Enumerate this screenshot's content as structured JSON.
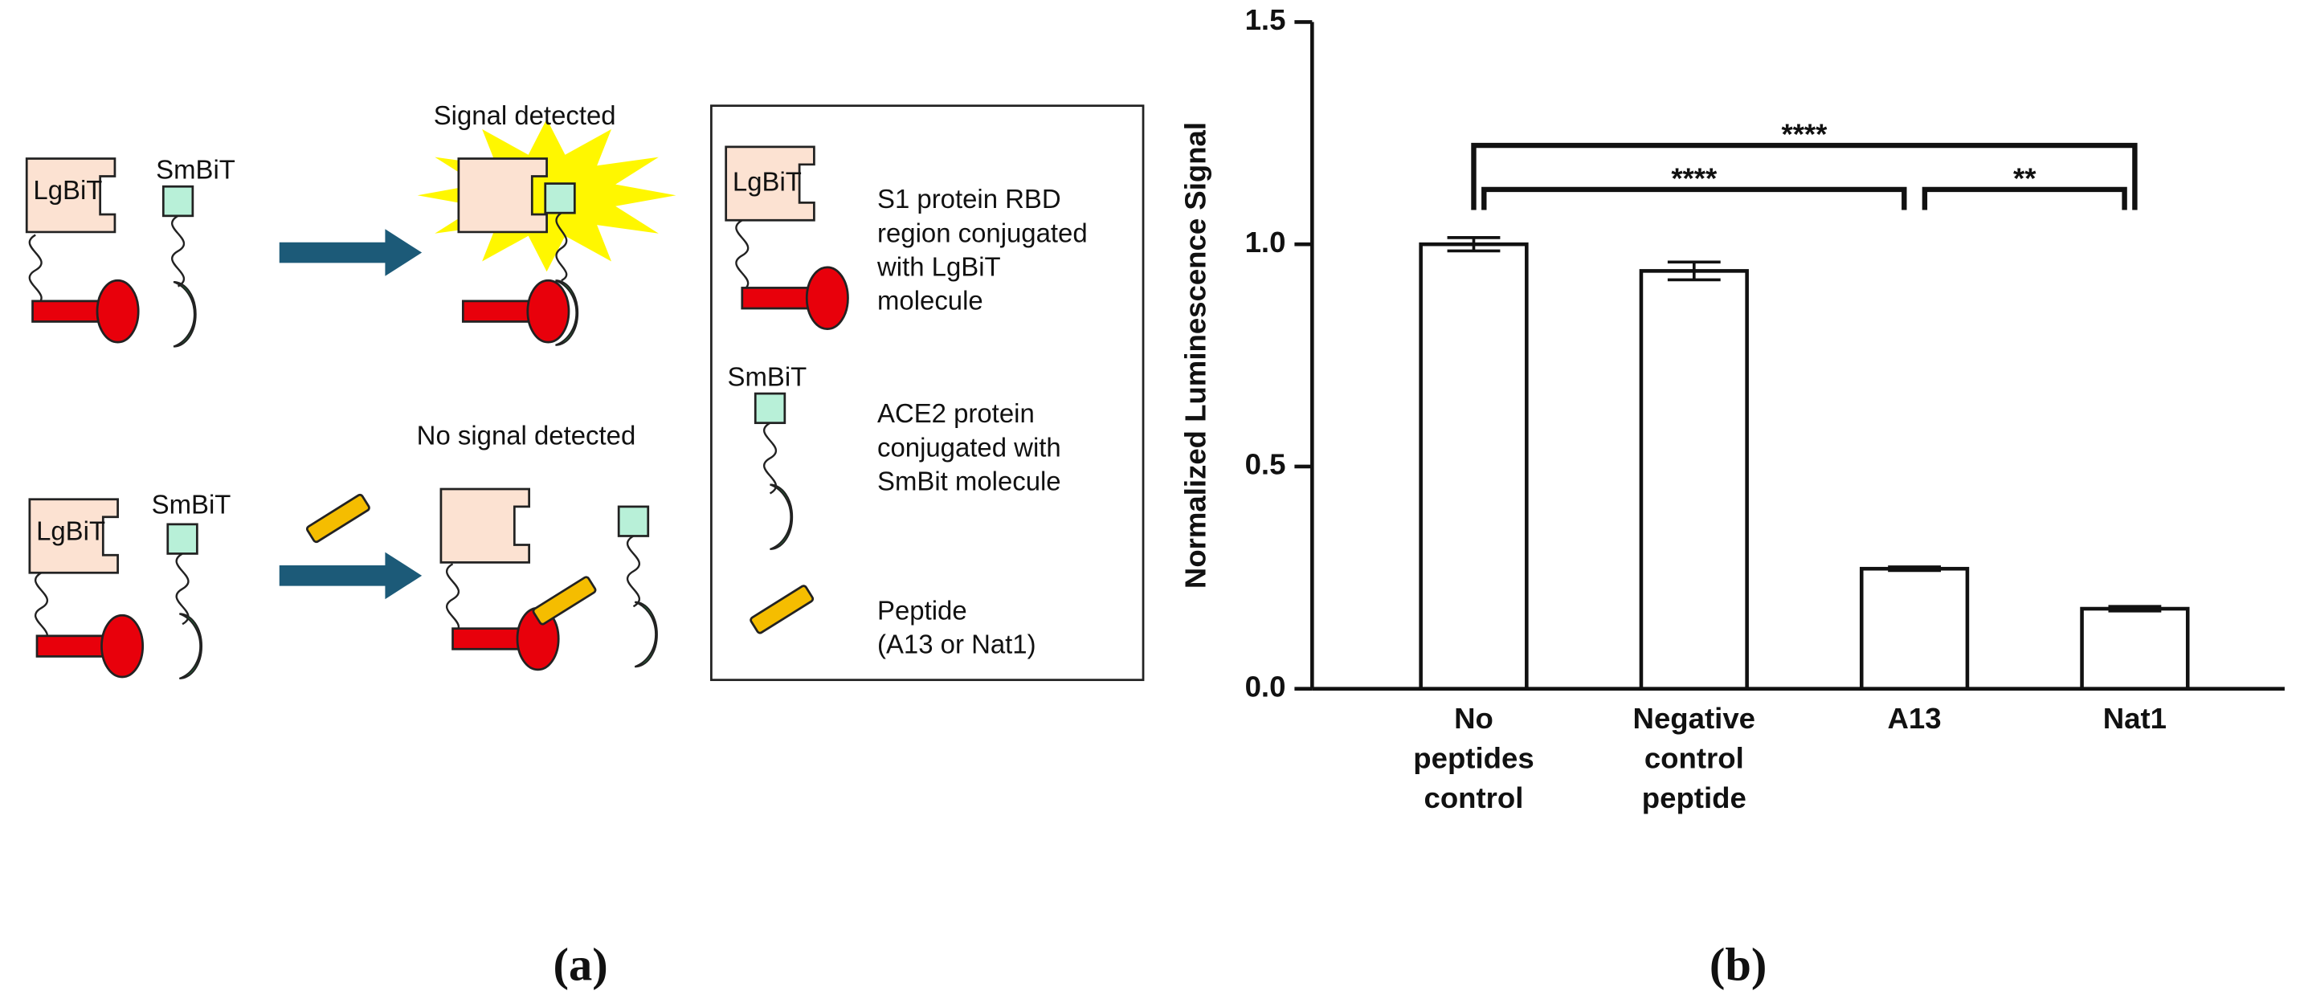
{
  "diagram": {
    "panel_label": "(a)",
    "states": [
      "Signal detected",
      "No signal detected"
    ],
    "molecules": {
      "lgbit": "LgBiT",
      "smbit": "SmBiT"
    },
    "legend": [
      [
        "S1 protein RBD",
        "region conjugated",
        "with LgBiT",
        "molecule"
      ],
      [
        "ACE2 protein",
        "conjugated with",
        "SmBit molecule"
      ],
      [
        "Peptide",
        "(A13 or Nat1)"
      ]
    ]
  },
  "chart_data": {
    "type": "bar",
    "panel_label": "(b)",
    "y_label": "Normalized Luminescence Signal",
    "categories": [
      "No peptides control",
      "Negative control peptide",
      "A13",
      "Nat1"
    ],
    "series": [
      {
        "color": "#ffffff",
        "values": [
          1.0,
          0.94,
          0.27,
          0.18
        ],
        "errors": [
          0.015,
          0.02,
          0.004,
          0.005
        ]
      }
    ],
    "ylim": [
      0,
      1.5
    ],
    "yticks": [
      {
        "value": 0,
        "label": "0.0"
      },
      0.5,
      {
        "value": 1,
        "label": "1.0"
      },
      1.5
    ],
    "significance": [
      {
        "groups": [
          "No peptides control",
          "Nat1"
        ],
        "label": "****"
      },
      {
        "groups": [
          "No peptides control",
          "A13"
        ],
        "label": "****"
      },
      {
        "groups": [
          "A13",
          "Nat1"
        ],
        "label": "**"
      }
    ]
  }
}
